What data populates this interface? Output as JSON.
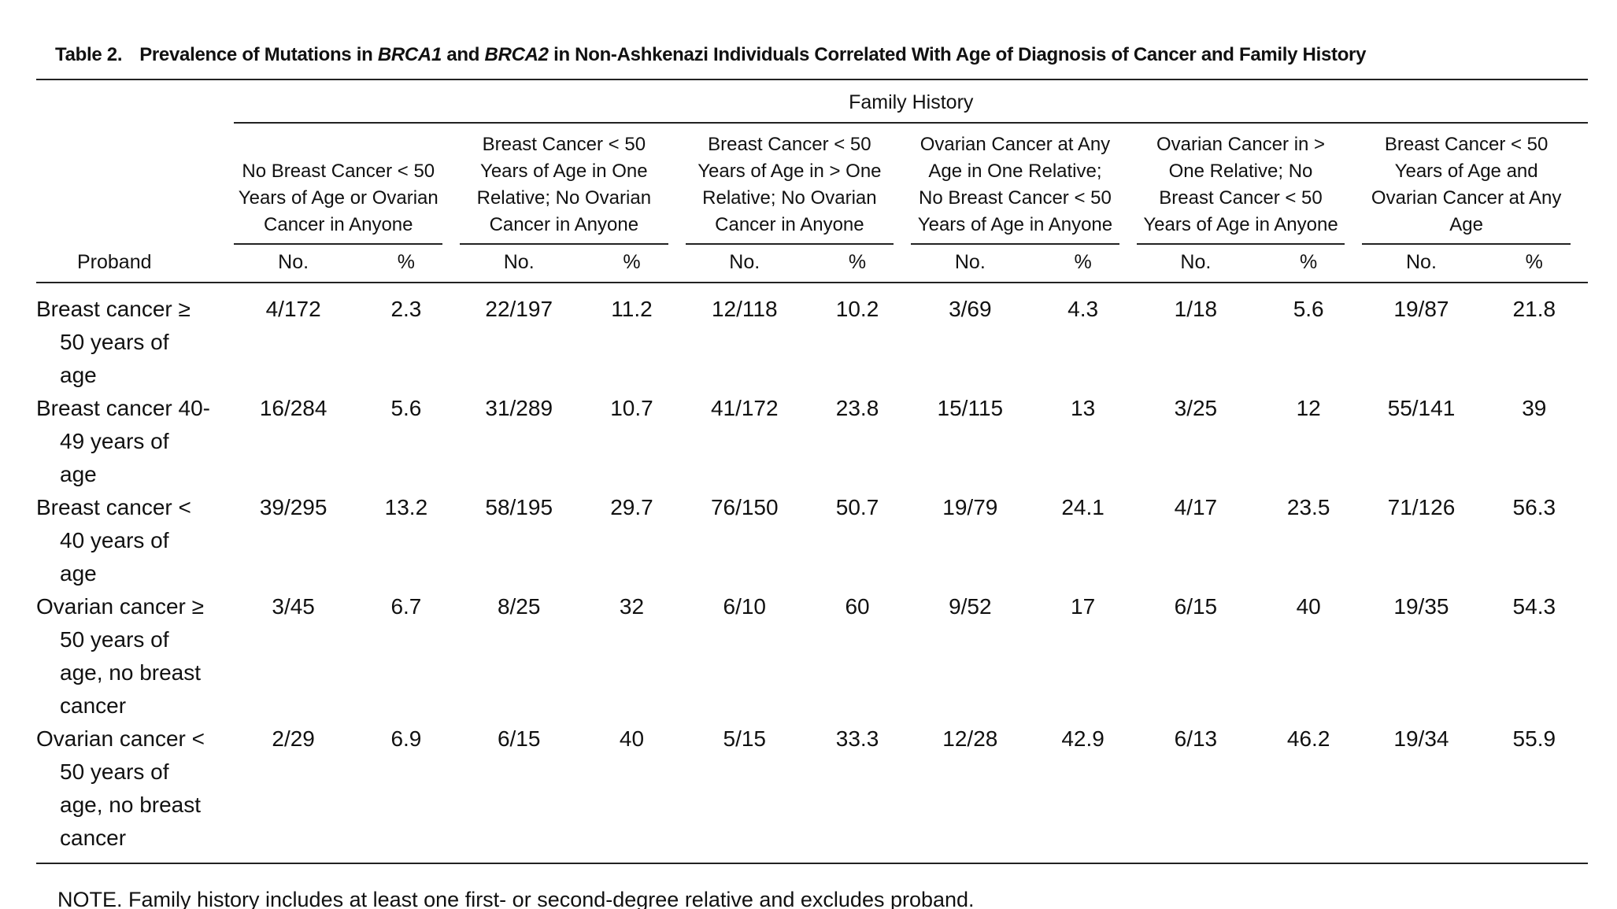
{
  "title": {
    "label": "Table 2.",
    "parts": [
      "Prevalence of Mutations in ",
      "BRCA1",
      " and ",
      "BRCA2",
      " in Non-Ashkenazi Individuals Correlated With Age of Diagnosis of Cancer and Family History"
    ]
  },
  "table": {
    "spanner": "Family History",
    "stub_header": "Proband",
    "groups": [
      "No Breast Cancer < 50 Years of Age or Ovarian Cancer in Anyone",
      "Breast Cancer < 50 Years of Age in One Relative; No Ovarian Cancer in Anyone",
      "Breast Cancer < 50 Years of Age in > One Relative; No Ovarian Cancer in Anyone",
      "Ovarian Cancer at Any Age in One Relative; No Breast Cancer < 50 Years of Age in Anyone",
      "Ovarian Cancer in > One Relative; No Breast Cancer < 50 Years of Age in Anyone",
      "Breast Cancer < 50 Years of Age and Ovarian Cancer at Any Age"
    ],
    "subheaders": [
      "No.",
      "%"
    ],
    "rows": [
      {
        "proband": "Breast cancer ≥ 50 years of age",
        "cells": [
          [
            "4/172",
            2.3
          ],
          [
            "22/197",
            11.2
          ],
          [
            "12/118",
            10.2
          ],
          [
            "3/69",
            4.3
          ],
          [
            "1/18",
            5.6
          ],
          [
            "19/87",
            21.8
          ]
        ]
      },
      {
        "proband": "Breast cancer 40-49 years of age",
        "cells": [
          [
            "16/284",
            5.6
          ],
          [
            "31/289",
            10.7
          ],
          [
            "41/172",
            23.8
          ],
          [
            "15/115",
            13
          ],
          [
            "3/25",
            12
          ],
          [
            "55/141",
            39
          ]
        ]
      },
      {
        "proband": "Breast cancer < 40 years of age",
        "cells": [
          [
            "39/295",
            13.2
          ],
          [
            "58/195",
            29.7
          ],
          [
            "76/150",
            50.7
          ],
          [
            "19/79",
            24.1
          ],
          [
            "4/17",
            23.5
          ],
          [
            "71/126",
            56.3
          ]
        ]
      },
      {
        "proband": "Ovarian cancer ≥ 50 years of age, no breast cancer",
        "cells": [
          [
            "3/45",
            6.7
          ],
          [
            "8/25",
            32
          ],
          [
            "6/10",
            60
          ],
          [
            "9/52",
            17
          ],
          [
            "6/15",
            40
          ],
          [
            "19/35",
            54.3
          ]
        ]
      },
      {
        "proband": "Ovarian cancer < 50 years of age, no breast cancer",
        "cells": [
          [
            "2/29",
            6.9
          ],
          [
            "6/15",
            40
          ],
          [
            "5/15",
            33.3
          ],
          [
            "12/28",
            42.9
          ],
          [
            "6/13",
            46.2
          ],
          [
            "19/34",
            55.9
          ]
        ]
      }
    ]
  },
  "note": "NOTE. Family history includes at least one first- or second-degree relative and excludes proband."
}
